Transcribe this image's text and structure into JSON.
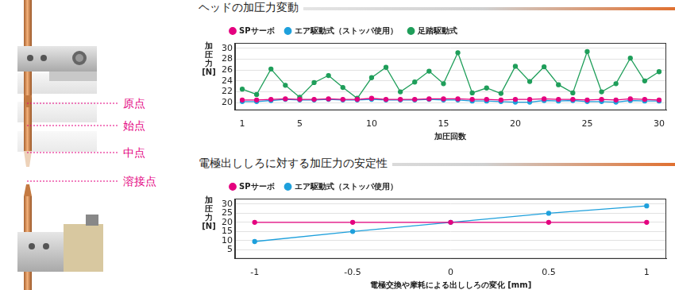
{
  "diagram": {
    "labels": [
      "原点",
      "始点",
      "中点",
      "溶接点"
    ]
  },
  "chart_data": [
    {
      "type": "line",
      "title": "ヘッドの加圧力変動",
      "xlabel": "加圧回数",
      "ylabel": "加圧力 [N]",
      "x": [
        1,
        2,
        3,
        4,
        5,
        6,
        7,
        8,
        9,
        10,
        11,
        12,
        13,
        14,
        15,
        16,
        17,
        18,
        19,
        20,
        21,
        22,
        23,
        24,
        25,
        26,
        27,
        28,
        29,
        30
      ],
      "series": [
        {
          "name": "SPサーボ",
          "color": "#e4007f",
          "marker": "circle",
          "line_style": "solid",
          "values": [
            20.5,
            20.5,
            20.6,
            20.7,
            20.6,
            20.6,
            20.7,
            20.6,
            20.6,
            20.8,
            20.6,
            20.6,
            20.6,
            20.7,
            20.7,
            20.7,
            20.6,
            20.6,
            20.5,
            20.6,
            20.6,
            20.7,
            20.6,
            20.6,
            20.5,
            20.6,
            20.5,
            20.7,
            20.6,
            20.5
          ]
        },
        {
          "name": "エア駆動式（ストッパ使用）",
          "color": "#1ea0dc",
          "marker": "circle",
          "line_style": "solid",
          "values": [
            20.2,
            20.2,
            20.4,
            20.6,
            20.5,
            20.5,
            20.6,
            20.5,
            20.5,
            20.6,
            20.5,
            20.5,
            20.5,
            20.6,
            20.5,
            20.5,
            20.3,
            20.3,
            20.2,
            20.1,
            20.1,
            20.4,
            20.3,
            20.4,
            20.2,
            20.2,
            20.1,
            20.4,
            20.3,
            20.3
          ]
        },
        {
          "name": "足踏駆動式",
          "color": "#1f9e5a",
          "marker": "circle",
          "line_style": "solid",
          "values": [
            22.5,
            21.5,
            26.2,
            23.2,
            21.0,
            23.7,
            25.0,
            22.8,
            20.8,
            24.6,
            26.5,
            22.0,
            23.8,
            25.8,
            23.5,
            29.2,
            21.8,
            22.7,
            21.7,
            26.7,
            23.9,
            26.6,
            23.3,
            21.8,
            29.4,
            22.0,
            23.5,
            28.2,
            24.0,
            25.7
          ]
        }
      ],
      "xlim": [
        0.5,
        30.5
      ],
      "xticks": [
        1,
        5,
        10,
        15,
        20,
        25,
        30
      ],
      "ylim": [
        18.6,
        31
      ],
      "yticks": [
        20,
        22,
        24,
        26,
        28,
        30
      ],
      "grid": true,
      "legend": "top-left"
    },
    {
      "type": "line",
      "title": "電極出ししろに対する加圧力の安定性",
      "xlabel": "電極交換や摩耗による出ししろの変化 [mm]",
      "ylabel": "加圧力 [N]",
      "x": [
        -1,
        -0.5,
        0,
        0.5,
        1
      ],
      "series": [
        {
          "name": "SPサーボ",
          "color": "#e4007f",
          "marker": "circle",
          "line_style": "solid",
          "values": [
            20,
            20,
            20,
            20,
            20
          ]
        },
        {
          "name": "エア駆動式（ストッパ使用）",
          "color": "#1ea0dc",
          "marker": "circle",
          "line_style": "solid",
          "values": [
            9.5,
            15,
            20,
            25,
            29
          ]
        }
      ],
      "xlim": [
        -1.1,
        1.1
      ],
      "xticks": [
        -1,
        -0.5,
        0,
        0.5,
        1
      ],
      "ylim": [
        0,
        33
      ],
      "yticks": [
        5,
        10,
        15,
        20,
        25,
        30
      ],
      "grid": true,
      "legend": "top-left"
    }
  ]
}
